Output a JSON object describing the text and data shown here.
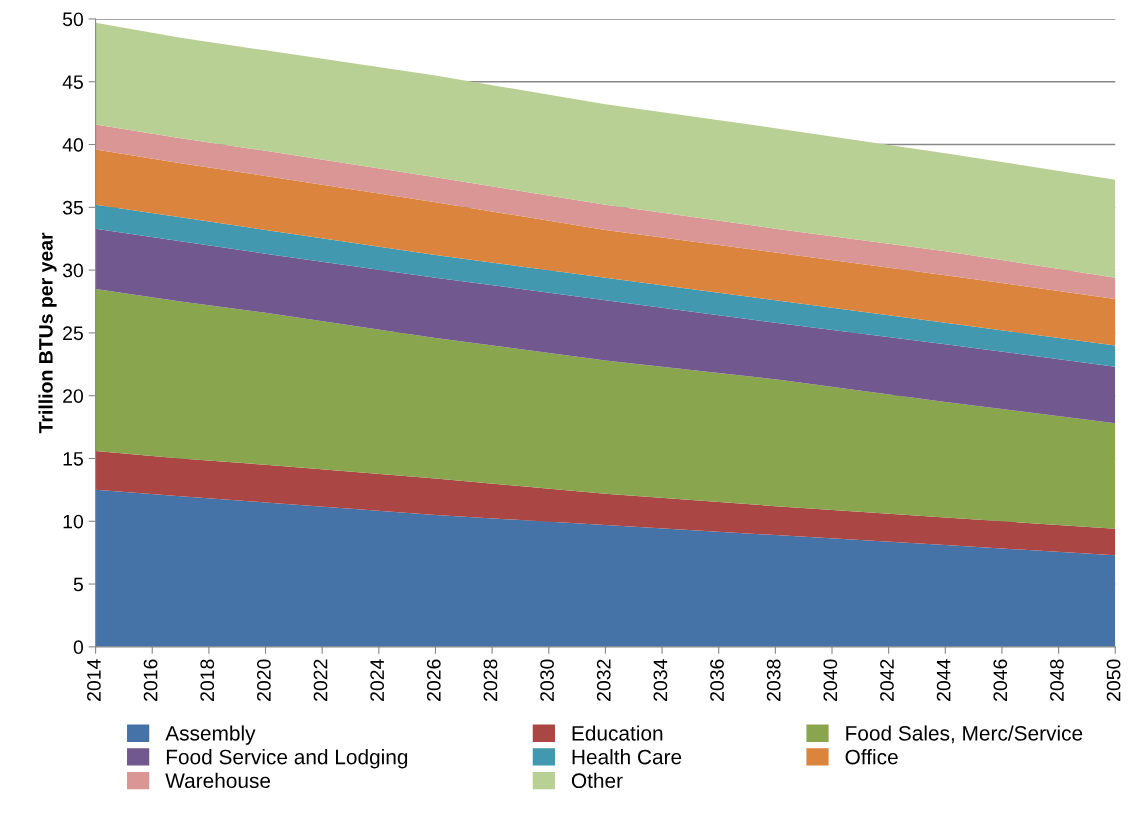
{
  "chart_data": {
    "type": "area",
    "stacked": true,
    "ylabel": "Trillion BTUs per year",
    "x": [
      2014,
      2017,
      2020,
      2026,
      2032,
      2038,
      2044,
      2050
    ],
    "xlim": [
      2014,
      2050
    ],
    "xticks": [
      2014,
      2016,
      2018,
      2020,
      2022,
      2024,
      2026,
      2028,
      2030,
      2032,
      2034,
      2036,
      2038,
      2040,
      2042,
      2044,
      2046,
      2048,
      2050
    ],
    "ylim": [
      0,
      50
    ],
    "yticks": [
      0,
      5,
      10,
      15,
      20,
      25,
      30,
      35,
      40,
      45,
      50
    ],
    "grid": "y",
    "legend": "bottom",
    "series": [
      {
        "name": "Assembly",
        "color": "#4673a7",
        "values": [
          12.5,
          12.0,
          11.5,
          10.5,
          9.7,
          8.9,
          8.1,
          7.3
        ]
      },
      {
        "name": "Education",
        "color": "#aa4643",
        "values": [
          3.1,
          3.0,
          3.0,
          2.9,
          2.5,
          2.3,
          2.2,
          2.1
        ]
      },
      {
        "name": "Food Sales, Merc/Service",
        "color": "#89a54e",
        "values": [
          12.9,
          12.5,
          12.1,
          11.2,
          10.6,
          10.1,
          9.2,
          8.4
        ]
      },
      {
        "name": "Food Service and Lodging",
        "color": "#71588f",
        "values": [
          4.8,
          4.8,
          4.7,
          4.8,
          4.8,
          4.5,
          4.6,
          4.5
        ]
      },
      {
        "name": "Health Care",
        "color": "#4198af",
        "values": [
          1.9,
          1.9,
          1.9,
          1.8,
          1.8,
          1.8,
          1.7,
          1.7
        ]
      },
      {
        "name": "Office",
        "color": "#db843d",
        "values": [
          4.4,
          4.3,
          4.3,
          4.2,
          3.8,
          3.8,
          3.8,
          3.7
        ]
      },
      {
        "name": "Warehouse",
        "color": "#d99694",
        "values": [
          2.0,
          2.0,
          2.0,
          2.0,
          2.0,
          1.9,
          1.9,
          1.7
        ]
      },
      {
        "name": "Other",
        "color": "#b9d095",
        "values": [
          8.1,
          8.0,
          8.0,
          8.1,
          8.0,
          8.0,
          7.8,
          7.8
        ]
      }
    ]
  }
}
